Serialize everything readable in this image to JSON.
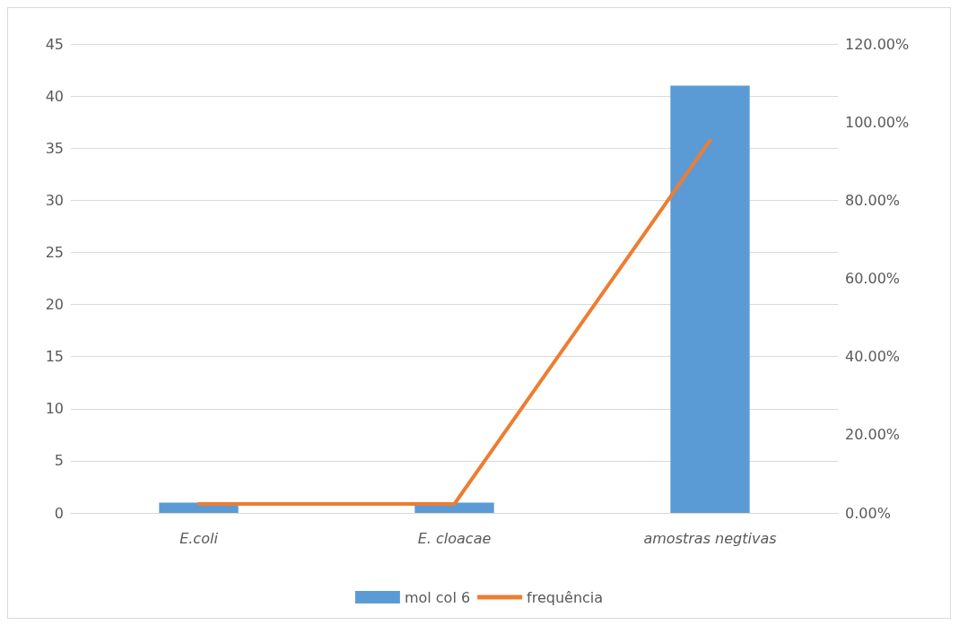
{
  "chart_data": {
    "type": "bar",
    "categories": [
      "E.coli",
      "E. cloacae",
      "amostras negtivas"
    ],
    "series": [
      {
        "name": "mol col 6",
        "color": "#5b9bd5",
        "values": [
          1,
          1,
          41
        ]
      },
      {
        "name": "frequência",
        "type": "line",
        "axis": "y2",
        "color": "#ed7d31",
        "values": [
          2.3,
          2.3,
          95.3
        ]
      }
    ],
    "ylim": [
      0,
      45
    ],
    "yticks": [
      0,
      5,
      10,
      15,
      20,
      25,
      30,
      35,
      40,
      45
    ],
    "y2lim": [
      0,
      120
    ],
    "y2ticks": [
      {
        "value": 0,
        "label": "0.00%"
      },
      {
        "value": 20,
        "label": "20.00%"
      },
      {
        "value": 40,
        "label": "40.00%"
      },
      {
        "value": 60,
        "label": "60.00%"
      },
      {
        "value": 80,
        "label": "80.00%"
      },
      {
        "value": 100,
        "label": "100.00%"
      },
      {
        "value": 120,
        "label": "120.00%"
      }
    ],
    "grid": "y",
    "legend": "bottom",
    "marker": "none"
  }
}
